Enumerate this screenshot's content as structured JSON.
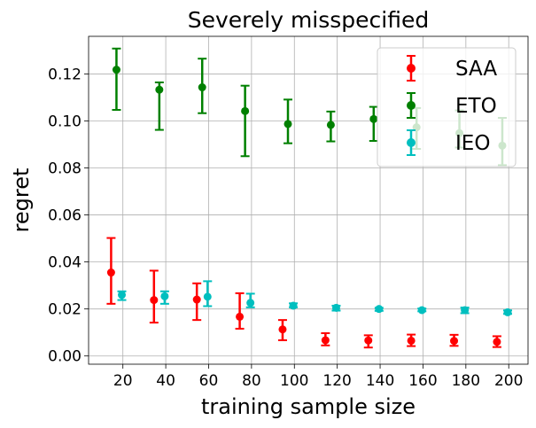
{
  "chart_data": {
    "type": "scatter",
    "title": "Severely misspecified",
    "xlabel": "training sample size",
    "ylabel": "regret",
    "xlim": [
      4,
      209
    ],
    "ylim": [
      -0.0035,
      0.136
    ],
    "xticks": [
      20,
      40,
      60,
      80,
      100,
      120,
      140,
      160,
      180,
      200
    ],
    "xtick_labels": [
      "20",
      "40",
      "60",
      "80",
      "100",
      "120",
      "140",
      "160",
      "180",
      "200"
    ],
    "yticks": [
      0.0,
      0.02,
      0.04,
      0.06,
      0.08,
      0.1,
      0.12
    ],
    "ytick_labels": [
      "0.00",
      "0.02",
      "0.04",
      "0.06",
      "0.08",
      "0.10",
      "0.12"
    ],
    "grid": true,
    "legend_position": "top-right",
    "series": [
      {
        "name": "SAA",
        "color": "#ff0000",
        "x": [
          14.5,
          34.5,
          54.5,
          74.5,
          94.5,
          114.5,
          134.5,
          154.5,
          174.5,
          194.5
        ],
        "y": [
          0.0355,
          0.0238,
          0.024,
          0.0167,
          0.0113,
          0.0067,
          0.0066,
          0.0065,
          0.0064,
          0.006
        ],
        "err_low": [
          0.0222,
          0.0142,
          0.0153,
          0.0116,
          0.0067,
          0.0045,
          0.0036,
          0.0042,
          0.0043,
          0.0038
        ],
        "err_high": [
          0.0502,
          0.0363,
          0.0309,
          0.0267,
          0.0153,
          0.0097,
          0.0088,
          0.0091,
          0.009,
          0.0084
        ]
      },
      {
        "name": "ETO",
        "color": "#008000",
        "x": [
          17,
          37,
          57,
          77,
          97,
          117,
          137,
          157,
          177,
          197
        ],
        "y": [
          0.1218,
          0.1133,
          0.1143,
          0.1042,
          0.0987,
          0.0983,
          0.1008,
          0.0973,
          0.0948,
          0.0895
        ],
        "err_low": [
          0.1047,
          0.0962,
          0.1033,
          0.085,
          0.0905,
          0.0913,
          0.0915,
          0.0881,
          0.0887,
          0.0812
        ],
        "err_high": [
          0.1308,
          0.1164,
          0.1265,
          0.115,
          0.1091,
          0.104,
          0.106,
          0.1055,
          0.1045,
          0.1013
        ]
      },
      {
        "name": "IEO",
        "color": "#00bfbf",
        "x": [
          19.5,
          39.5,
          59.5,
          79.5,
          99.5,
          119.5,
          139.5,
          159.5,
          179.5,
          199.5
        ],
        "y": [
          0.026,
          0.0254,
          0.0252,
          0.0226,
          0.0214,
          0.0205,
          0.02,
          0.0195,
          0.0195,
          0.0186
        ],
        "err_low": [
          0.0238,
          0.0222,
          0.0212,
          0.0207,
          0.0207,
          0.0193,
          0.0192,
          0.019,
          0.0182,
          0.0179
        ],
        "err_high": [
          0.0275,
          0.0275,
          0.0318,
          0.0265,
          0.0224,
          0.0214,
          0.0205,
          0.0202,
          0.0206,
          0.0194
        ]
      }
    ]
  }
}
